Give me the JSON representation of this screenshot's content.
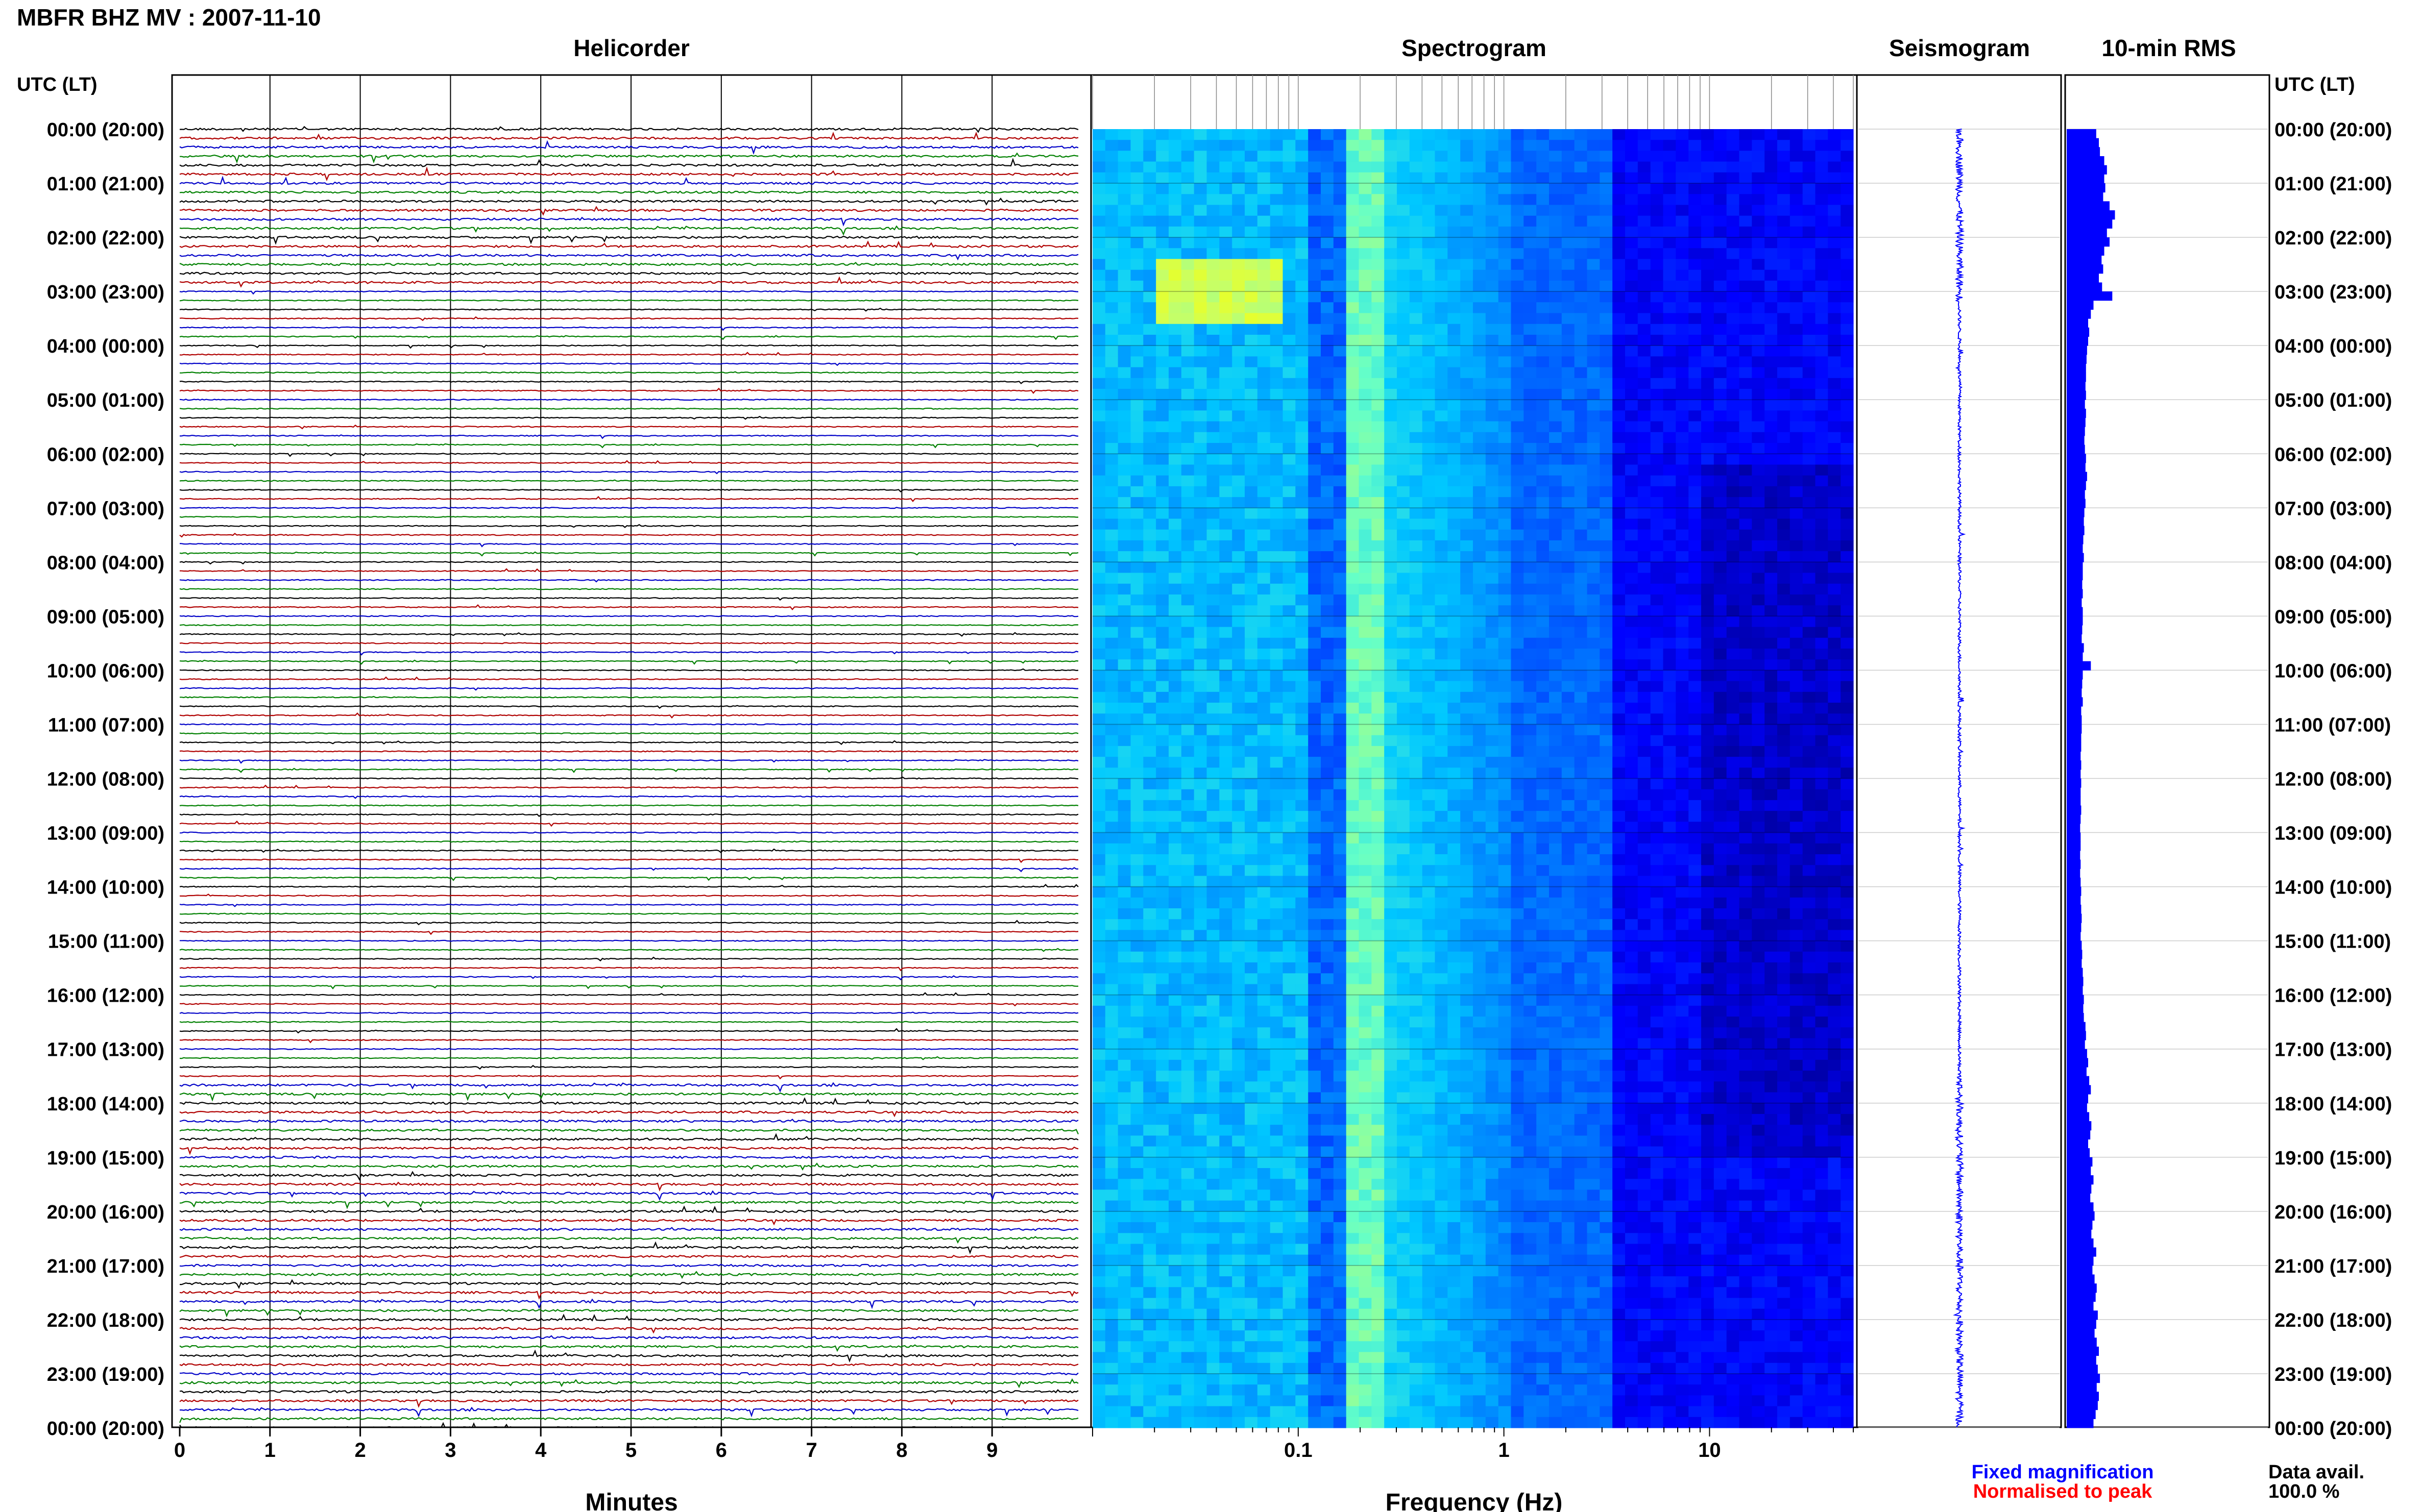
{
  "header": {
    "title": "MBFR BHZ MV : 2007-11-10",
    "panel_titles": [
      "Helicorder",
      "Spectrogram",
      "Seismogram",
      "10-min RMS"
    ],
    "utc_header": "UTC (LT)"
  },
  "chart_data": [
    {
      "type": "helicorder",
      "title": "Helicorder",
      "xlabel": "Minutes",
      "x_ticks": [
        "0",
        "1",
        "2",
        "3",
        "4",
        "5",
        "6",
        "7",
        "8",
        "9"
      ],
      "xlim": [
        0,
        10
      ],
      "y_labels": [
        "00:00 (20:00)",
        "01:00 (21:00)",
        "02:00 (22:00)",
        "03:00 (23:00)",
        "04:00 (00:00)",
        "05:00 (01:00)",
        "06:00 (02:00)",
        "07:00 (03:00)",
        "08:00 (04:00)",
        "09:00 (05:00)",
        "10:00 (06:00)",
        "11:00 (07:00)",
        "12:00 (08:00)",
        "13:00 (09:00)",
        "14:00 (10:00)",
        "15:00 (11:00)",
        "16:00 (12:00)",
        "17:00 (13:00)",
        "18:00 (14:00)",
        "19:00 (15:00)",
        "20:00 (16:00)",
        "21:00 (17:00)",
        "22:00 (18:00)",
        "23:00 (19:00)",
        "00:00 (20:00)"
      ],
      "trace_colors": [
        "#000000",
        "#b00000",
        "#0000c8",
        "#008000"
      ],
      "traces_per_hour": 6
    },
    {
      "type": "heatmap",
      "title": "Spectrogram",
      "xlabel": "Frequency (Hz)",
      "x_scale": "log",
      "x_ticks": [
        "0.1",
        "1",
        "10"
      ],
      "xlim": [
        0.01,
        50
      ],
      "colormap": [
        "#00008b",
        "#0000ff",
        "#0064ff",
        "#00c8ff",
        "#64ffc8",
        "#c8ff64",
        "#ffff00"
      ]
    },
    {
      "type": "line",
      "title": "Seismogram",
      "orientation": "vertical",
      "color": "#0000ff"
    },
    {
      "type": "bar",
      "title": "10-min RMS",
      "orientation": "horizontal",
      "color": "#0000ff",
      "bins": 144,
      "relative_values": [
        0.55,
        0.6,
        0.62,
        0.7,
        0.75,
        0.7,
        0.72,
        0.68,
        0.8,
        0.9,
        0.85,
        0.75,
        0.8,
        0.7,
        0.65,
        0.68,
        0.6,
        0.66,
        0.85,
        0.5,
        0.45,
        0.4,
        0.42,
        0.4,
        0.38,
        0.37,
        0.36,
        0.36,
        0.35,
        0.36,
        0.34,
        0.36,
        0.35,
        0.34,
        0.33,
        0.34,
        0.36,
        0.35,
        0.38,
        0.36,
        0.34,
        0.35,
        0.33,
        0.32,
        0.33,
        0.31,
        0.3,
        0.32,
        0.3,
        0.3,
        0.29,
        0.3,
        0.28,
        0.3,
        0.3,
        0.29,
        0.28,
        0.32,
        0.3,
        0.45,
        0.3,
        0.29,
        0.28,
        0.3,
        0.27,
        0.28,
        0.28,
        0.27,
        0.27,
        0.26,
        0.27,
        0.26,
        0.27,
        0.26,
        0.26,
        0.27,
        0.26,
        0.25,
        0.26,
        0.26,
        0.25,
        0.26,
        0.25,
        0.26,
        0.27,
        0.26,
        0.27,
        0.28,
        0.27,
        0.26,
        0.28,
        0.29,
        0.28,
        0.3,
        0.31,
        0.3,
        0.32,
        0.31,
        0.32,
        0.35,
        0.36,
        0.34,
        0.38,
        0.4,
        0.37,
        0.42,
        0.45,
        0.4,
        0.38,
        0.42,
        0.46,
        0.44,
        0.4,
        0.43,
        0.48,
        0.45,
        0.5,
        0.46,
        0.44,
        0.5,
        0.52,
        0.48,
        0.46,
        0.5,
        0.55,
        0.5,
        0.48,
        0.52,
        0.56,
        0.54,
        0.5,
        0.58,
        0.55,
        0.52,
        0.56,
        0.6,
        0.55,
        0.58,
        0.62,
        0.56,
        0.6,
        0.58,
        0.54,
        0.5
      ]
    }
  ],
  "footer": {
    "fixed_label": "Fixed magnification",
    "normalised_label": "Normalised to peak",
    "avail_label": "Data avail.",
    "avail_value": "100.0 %",
    "fixed_color": "#0000ff",
    "normalised_color": "#ff0000"
  }
}
